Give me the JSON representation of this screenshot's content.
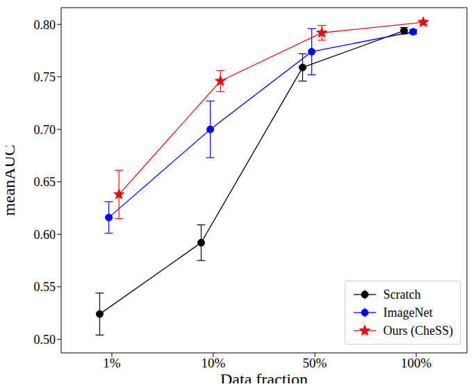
{
  "chart_data": {
    "type": "line",
    "x_label": "Data fraction",
    "y_label": "meanAUC",
    "categories": [
      "1%",
      "10%",
      "50%",
      "100%"
    ],
    "series": [
      {
        "name": "Scratch",
        "color": "#000000",
        "marker": "circle",
        "values": [
          0.524,
          0.592,
          0.759,
          0.794
        ],
        "errors": [
          0.02,
          0.017,
          0.013,
          0.003
        ]
      },
      {
        "name": "ImageNet",
        "color": "#0000ff",
        "marker": "circle",
        "values": [
          0.616,
          0.7,
          0.774,
          0.793
        ],
        "errors": [
          0.015,
          0.027,
          0.022,
          0.002
        ]
      },
      {
        "name": "Ours (CheSS)",
        "color": "#dd1111",
        "marker": "star",
        "values": [
          0.638,
          0.746,
          0.792,
          0.802
        ],
        "errors": [
          0.023,
          0.01,
          0.007,
          0.002
        ]
      }
    ],
    "ylim": [
      0.487,
      0.816
    ],
    "yticks": [
      {
        "value": 0.5,
        "label": "0.50"
      },
      {
        "value": 0.55,
        "label": "0.55"
      },
      {
        "value": 0.6,
        "label": "0.60"
      },
      {
        "value": 0.65,
        "label": "0.65"
      },
      {
        "value": 0.7,
        "label": "0.70"
      },
      {
        "value": 0.75,
        "label": "0.75"
      },
      {
        "value": 0.8,
        "label": "0.80"
      }
    ],
    "grid": true,
    "legend": "lower right"
  }
}
